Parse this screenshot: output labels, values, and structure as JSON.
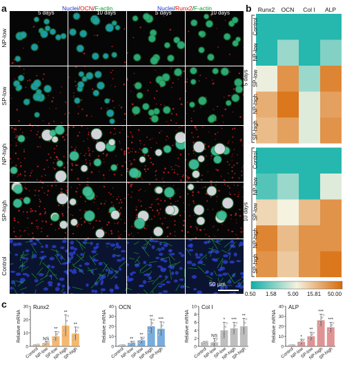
{
  "panel_a": {
    "letter": "a",
    "header_left": {
      "nuclei": "Nuclei",
      "sep1": "/",
      "marker": "OCN",
      "sep2": "/",
      "actin": "F-actin"
    },
    "header_right": {
      "nuclei": "Nuclei",
      "sep1": "/",
      "marker": "Runx2",
      "sep2": "/",
      "actin": "F-actin"
    },
    "day_labels": [
      "5 days",
      "10 days",
      "5 days",
      "10 days"
    ],
    "rows": [
      "NP-low",
      "SP-low",
      "NP-high",
      "SP-high",
      "Control"
    ],
    "scale_bar": "50 μm"
  },
  "panel_b": {
    "letter": "b",
    "columns": [
      "Runx2",
      "OCN",
      "Col I",
      "ALP"
    ],
    "groups": [
      {
        "label": "5 days",
        "rows": [
          "Control",
          "NP-low",
          "SP-low",
          "NP-high",
          "SP-high"
        ]
      },
      {
        "label": "10 days",
        "rows": [
          "Control",
          "NP-low",
          "SP-low",
          "NP-high",
          "SP-high"
        ]
      }
    ],
    "colorbar_ticks": [
      "0.50",
      "1.58",
      "5.00",
      "15.81",
      "50.00"
    ],
    "colors": {
      "low": "#0fb0a8",
      "mid": "#f5f2e0",
      "high": "#d86a08"
    }
  },
  "chart_data": {
    "type": "bar",
    "panel_letter": "c",
    "categories": [
      "Control",
      "NP-low",
      "SP-low",
      "NP-high",
      "SP-high"
    ],
    "charts": [
      {
        "title": "Runx2",
        "ylabel": "Relative mRNA",
        "ylim": [
          0,
          30
        ],
        "yticks": [
          0,
          10,
          20,
          30
        ],
        "color": "#f0a040",
        "values": [
          1.0,
          2.5,
          7.5,
          15.5,
          9.5
        ],
        "errors": [
          0.3,
          1.2,
          3.5,
          8.0,
          5.0
        ],
        "sig": [
          "",
          "NS",
          "**",
          "**",
          "**"
        ]
      },
      {
        "title": "OCN",
        "ylabel": "Relative mRNA",
        "ylim": [
          0,
          40
        ],
        "yticks": [
          0,
          10,
          20,
          30,
          40
        ],
        "color": "#4a90d0",
        "values": [
          1.0,
          3.5,
          6.0,
          20.0,
          17.5
        ],
        "errors": [
          0.3,
          1.5,
          3.0,
          7.0,
          7.0
        ],
        "sig": [
          "",
          "**",
          "**",
          "**",
          "***"
        ]
      },
      {
        "title": "Col I",
        "ylabel": "Relative mRNA",
        "ylim": [
          0,
          10
        ],
        "yticks": [
          0,
          2,
          4,
          6,
          8,
          10
        ],
        "color": "#a8a8a8",
        "values": [
          1.0,
          1.0,
          4.0,
          4.5,
          5.0
        ],
        "errors": [
          0.2,
          1.0,
          2.0,
          1.5,
          2.0
        ],
        "sig": [
          "",
          "NS",
          "*",
          "***",
          "**"
        ]
      },
      {
        "title": "ALP",
        "ylabel": "Relative mRNA",
        "ylim": [
          0,
          40
        ],
        "yticks": [
          0,
          10,
          20,
          30,
          40
        ],
        "color": "#d47070",
        "values": [
          1.0,
          4.5,
          10.0,
          26.0,
          19.0
        ],
        "errors": [
          0.3,
          2.5,
          4.0,
          6.0,
          5.0
        ],
        "sig": [
          "",
          "*",
          "**",
          "***",
          "***"
        ]
      }
    ]
  }
}
